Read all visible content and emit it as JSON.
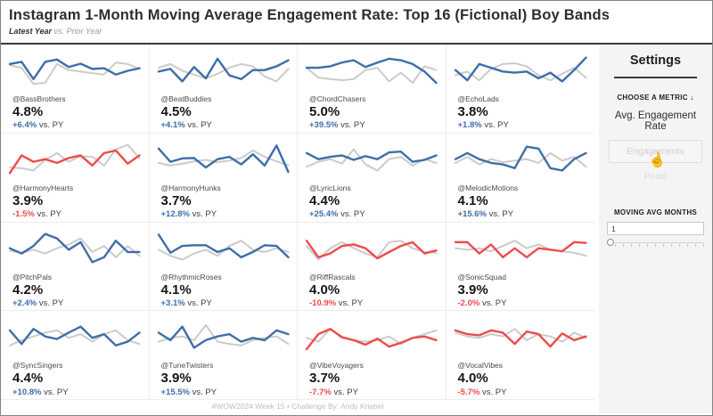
{
  "header": {
    "title": "Instagram 1-Month Moving Average Engagement Rate: Top 16 (Fictional) Boy Bands",
    "subtitle_latest": "Latest Year",
    "subtitle_vs": "vs. Prior Year"
  },
  "colors": {
    "positive": "#3d6ea9",
    "negative": "#ef4b4b",
    "prior": "#cbcbcb"
  },
  "settings": {
    "title": "Settings",
    "metric_header": "CHOOSE A METRIC ↓",
    "metric_selected": "Avg. Engagement Rate",
    "metric_options": [
      "Engagements",
      "Posts"
    ],
    "moving_avg_header": "MOVING AVG MONTHS",
    "moving_avg_value": "1"
  },
  "footer": {
    "credit": "#WOW2024 Week 15  •  Challenge By: Andy Kriebel"
  },
  "chart_data": {
    "type": "line",
    "title": "Instagram 1-Month Moving Average Engagement Rate: Top 16 (Fictional) Boy Bands",
    "series_names": [
      "Latest Year",
      "Prior Year"
    ],
    "x": [
      1,
      2,
      3,
      4,
      5,
      6,
      7,
      8,
      9,
      10,
      11,
      12
    ],
    "x_note": "12 monthly points per sparkline, unlabeled axes; y values are relative heights 0-100",
    "legend_position": "none",
    "grid": false,
    "tiles": [
      {
        "handle": "@BassBrothers",
        "value": "4.8%",
        "delta": "+6.4%",
        "vs_label": "vs. PY",
        "direction": "up",
        "latest": [
          68,
          74,
          28,
          74,
          80,
          60,
          69,
          55,
          57,
          40,
          50,
          57
        ],
        "prior": [
          65,
          58,
          15,
          18,
          68,
          52,
          48,
          44,
          40,
          72,
          68,
          55
        ]
      },
      {
        "handle": "@BeatBuddies",
        "value": "4.5%",
        "delta": "+4.1%",
        "vs_label": "vs. PY",
        "direction": "up",
        "latest": [
          48,
          55,
          22,
          60,
          30,
          82,
          38,
          28,
          52,
          52,
          62,
          78
        ],
        "prior": [
          58,
          68,
          50,
          40,
          30,
          42,
          58,
          68,
          62,
          35,
          22,
          55
        ]
      },
      {
        "handle": "@ChordChasers",
        "value": "5.0%",
        "delta": "+39.5%",
        "vs_label": "vs. PY",
        "direction": "up",
        "latest": [
          58,
          58,
          62,
          72,
          78,
          60,
          72,
          82,
          78,
          68,
          48,
          18
        ],
        "prior": [
          58,
          32,
          28,
          25,
          28,
          52,
          58,
          22,
          45,
          18,
          62,
          52
        ]
      },
      {
        "handle": "@EchoLads",
        "value": "3.8%",
        "delta": "+1.8%",
        "vs_label": "vs. PY",
        "direction": "up",
        "latest": [
          52,
          25,
          68,
          58,
          48,
          45,
          48,
          30,
          45,
          22,
          52,
          85
        ],
        "prior": [
          38,
          48,
          25,
          55,
          68,
          70,
          62,
          38,
          25,
          42,
          58,
          32
        ]
      },
      {
        "handle": "@HarmonyHearts",
        "value": "3.9%",
        "delta": "-1.5%",
        "vs_label": "vs. PY",
        "direction": "down",
        "latest": [
          15,
          62,
          45,
          52,
          42,
          55,
          62,
          35,
          68,
          75,
          40,
          62
        ],
        "prior": [
          30,
          28,
          22,
          50,
          68,
          45,
          60,
          58,
          35,
          78,
          90,
          55
        ]
      },
      {
        "handle": "@HarmonyHunks",
        "value": "3.7%",
        "delta": "+12.8%",
        "vs_label": "vs. PY",
        "direction": "up",
        "latest": [
          80,
          45,
          54,
          55,
          30,
          52,
          58,
          38,
          65,
          35,
          88,
          18
        ],
        "prior": [
          42,
          35,
          40,
          46,
          50,
          44,
          48,
          55,
          75,
          58,
          46,
          36
        ]
      },
      {
        "handle": "@LyricLions",
        "value": "4.4%",
        "delta": "+25.4%",
        "vs_label": "vs. PY",
        "direction": "up",
        "latest": [
          68,
          52,
          58,
          62,
          50,
          60,
          52,
          70,
          72,
          45,
          50,
          62
        ],
        "prior": [
          32,
          45,
          52,
          40,
          78,
          38,
          22,
          52,
          58,
          35,
          52,
          42
        ]
      },
      {
        "handle": "@MelodicMotions",
        "value": "4.1%",
        "delta": "+15.6%",
        "vs_label": "vs. PY",
        "direction": "up",
        "latest": [
          52,
          68,
          52,
          42,
          38,
          28,
          85,
          80,
          28,
          22,
          52,
          68
        ],
        "prior": [
          42,
          58,
          38,
          52,
          44,
          48,
          52,
          42,
          68,
          48,
          58,
          32
        ]
      },
      {
        "handle": "@PitchPals",
        "value": "4.2%",
        "delta": "+2.4%",
        "vs_label": "vs. PY",
        "direction": "up",
        "latest": [
          52,
          38,
          58,
          90,
          78,
          48,
          68,
          15,
          28,
          72,
          42,
          42
        ],
        "prior": [
          45,
          40,
          48,
          38,
          52,
          62,
          78,
          42,
          58,
          28,
          58,
          32
        ]
      },
      {
        "handle": "@RhythmicRoses",
        "value": "4.1%",
        "delta": "+3.1%",
        "vs_label": "vs. PY",
        "direction": "up",
        "latest": [
          88,
          40,
          58,
          60,
          60,
          42,
          52,
          28,
          42,
          60,
          58,
          28
        ],
        "prior": [
          48,
          32,
          22,
          38,
          48,
          32,
          58,
          72,
          48,
          42,
          52,
          42
        ]
      },
      {
        "handle": "@RiffRascals",
        "value": "4.0%",
        "delta": "-10.9%",
        "vs_label": "vs. PY",
        "direction": "down",
        "latest": [
          72,
          28,
          38,
          58,
          62,
          52,
          25,
          42,
          58,
          68,
          38,
          46
        ],
        "prior": [
          58,
          22,
          52,
          68,
          52,
          38,
          28,
          68,
          72,
          52,
          42,
          40
        ]
      },
      {
        "handle": "@SonicSquad",
        "value": "3.9%",
        "delta": "-2.0%",
        "vs_label": "vs. PY",
        "direction": "down",
        "latest": [
          68,
          68,
          38,
          62,
          28,
          52,
          28,
          52,
          48,
          44,
          68,
          66
        ],
        "prior": [
          52,
          48,
          52,
          44,
          58,
          72,
          52,
          62,
          48,
          44,
          40,
          32
        ]
      },
      {
        "handle": "@SyncSingers",
        "value": "4.4%",
        "delta": "+10.8%",
        "vs_label": "vs. PY",
        "direction": "up",
        "latest": [
          68,
          32,
          72,
          52,
          45,
          62,
          78,
          48,
          58,
          28,
          38,
          62
        ],
        "prior": [
          28,
          42,
          52,
          62,
          68,
          48,
          58,
          38,
          58,
          68,
          42,
          32
        ]
      },
      {
        "handle": "@TuneTwisters",
        "value": "3.9%",
        "delta": "+15.5%",
        "vs_label": "vs. PY",
        "direction": "up",
        "latest": [
          62,
          42,
          78,
          22,
          42,
          52,
          58,
          38,
          48,
          42,
          68,
          58
        ],
        "prior": [
          38,
          48,
          52,
          42,
          82,
          38,
          32,
          28,
          42,
          48,
          52,
          32
        ]
      },
      {
        "handle": "@VibeVoyagers",
        "value": "3.7%",
        "delta": "-7.7%",
        "vs_label": "vs. PY",
        "direction": "down",
        "latest": [
          18,
          58,
          72,
          50,
          42,
          30,
          46,
          25,
          35,
          48,
          52,
          42
        ],
        "prior": [
          48,
          38,
          72,
          48,
          42,
          38,
          42,
          52,
          32,
          48,
          58,
          68
        ]
      },
      {
        "handle": "@VocalVibes",
        "value": "4.0%",
        "delta": "-5.7%",
        "vs_label": "vs. PY",
        "direction": "down",
        "latest": [
          68,
          58,
          55,
          68,
          62,
          32,
          65,
          58,
          25,
          60,
          42,
          52
        ],
        "prior": [
          62,
          52,
          48,
          58,
          52,
          72,
          42,
          58,
          52,
          38,
          62,
          48
        ]
      }
    ]
  }
}
